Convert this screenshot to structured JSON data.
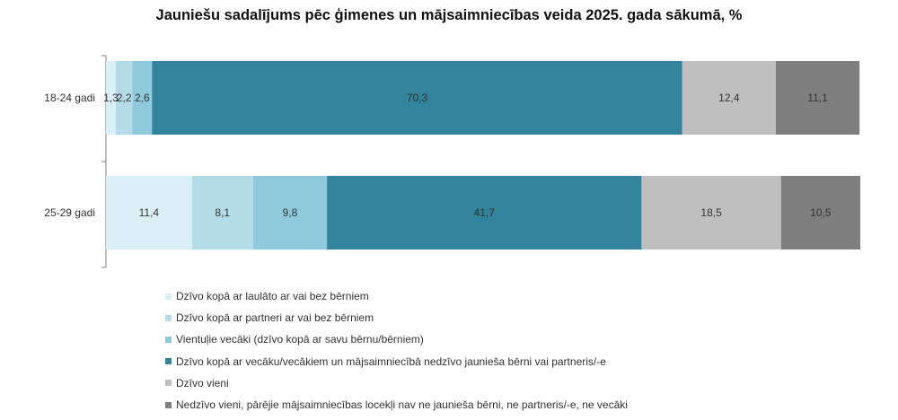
{
  "chart_data": {
    "type": "bar",
    "orientation": "horizontal",
    "stacked": true,
    "title": "Jauniešu sadalījums pēc ģimenes un mājsaimniecības veida 2025. gada sākumā, %",
    "categories": [
      "18-24 gadi",
      "25-29 gadi"
    ],
    "xlim": [
      0,
      100
    ],
    "grid": false,
    "legend_position": "bottom",
    "value_labels": [
      [
        "1,3",
        "2,2",
        "2,6",
        "70,3",
        "12,4",
        "11,1"
      ],
      [
        "11,4",
        "8,1",
        "9,8",
        "41,7",
        "18,5",
        "10,5"
      ]
    ],
    "series": [
      {
        "name": "Dzīvo kopā ar laulāto ar vai bez bērniem",
        "values": [
          1.3,
          11.4
        ],
        "color": "#daeef5"
      },
      {
        "name": "Dzīvo kopā ar partneri ar vai bez bērniem",
        "values": [
          2.2,
          8.1
        ],
        "color": "#b4dce8"
      },
      {
        "name": "Vientuļie vecāki (dzīvo kopā ar savu bērnu/bērniem)",
        "values": [
          2.6,
          9.8
        ],
        "color": "#8ecadc"
      },
      {
        "name": "Dzīvo kopā ar vecāku/vecākiem un mājsaimniecībā nedzīvo jaunieša bērni vai partneris/-e",
        "values": [
          70.3,
          41.7
        ],
        "color": "#31849b"
      },
      {
        "name": "Dzīvo vieni",
        "values": [
          12.4,
          18.5
        ],
        "color": "#bfbfbf"
      },
      {
        "name": "Nedzīvo vieni, pārējie mājsaimniecības locekļi nav ne jaunieša bērni, ne partneris/-e, ne vecāki",
        "values": [
          11.1,
          10.5
        ],
        "color": "#7f7f7f"
      }
    ]
  }
}
